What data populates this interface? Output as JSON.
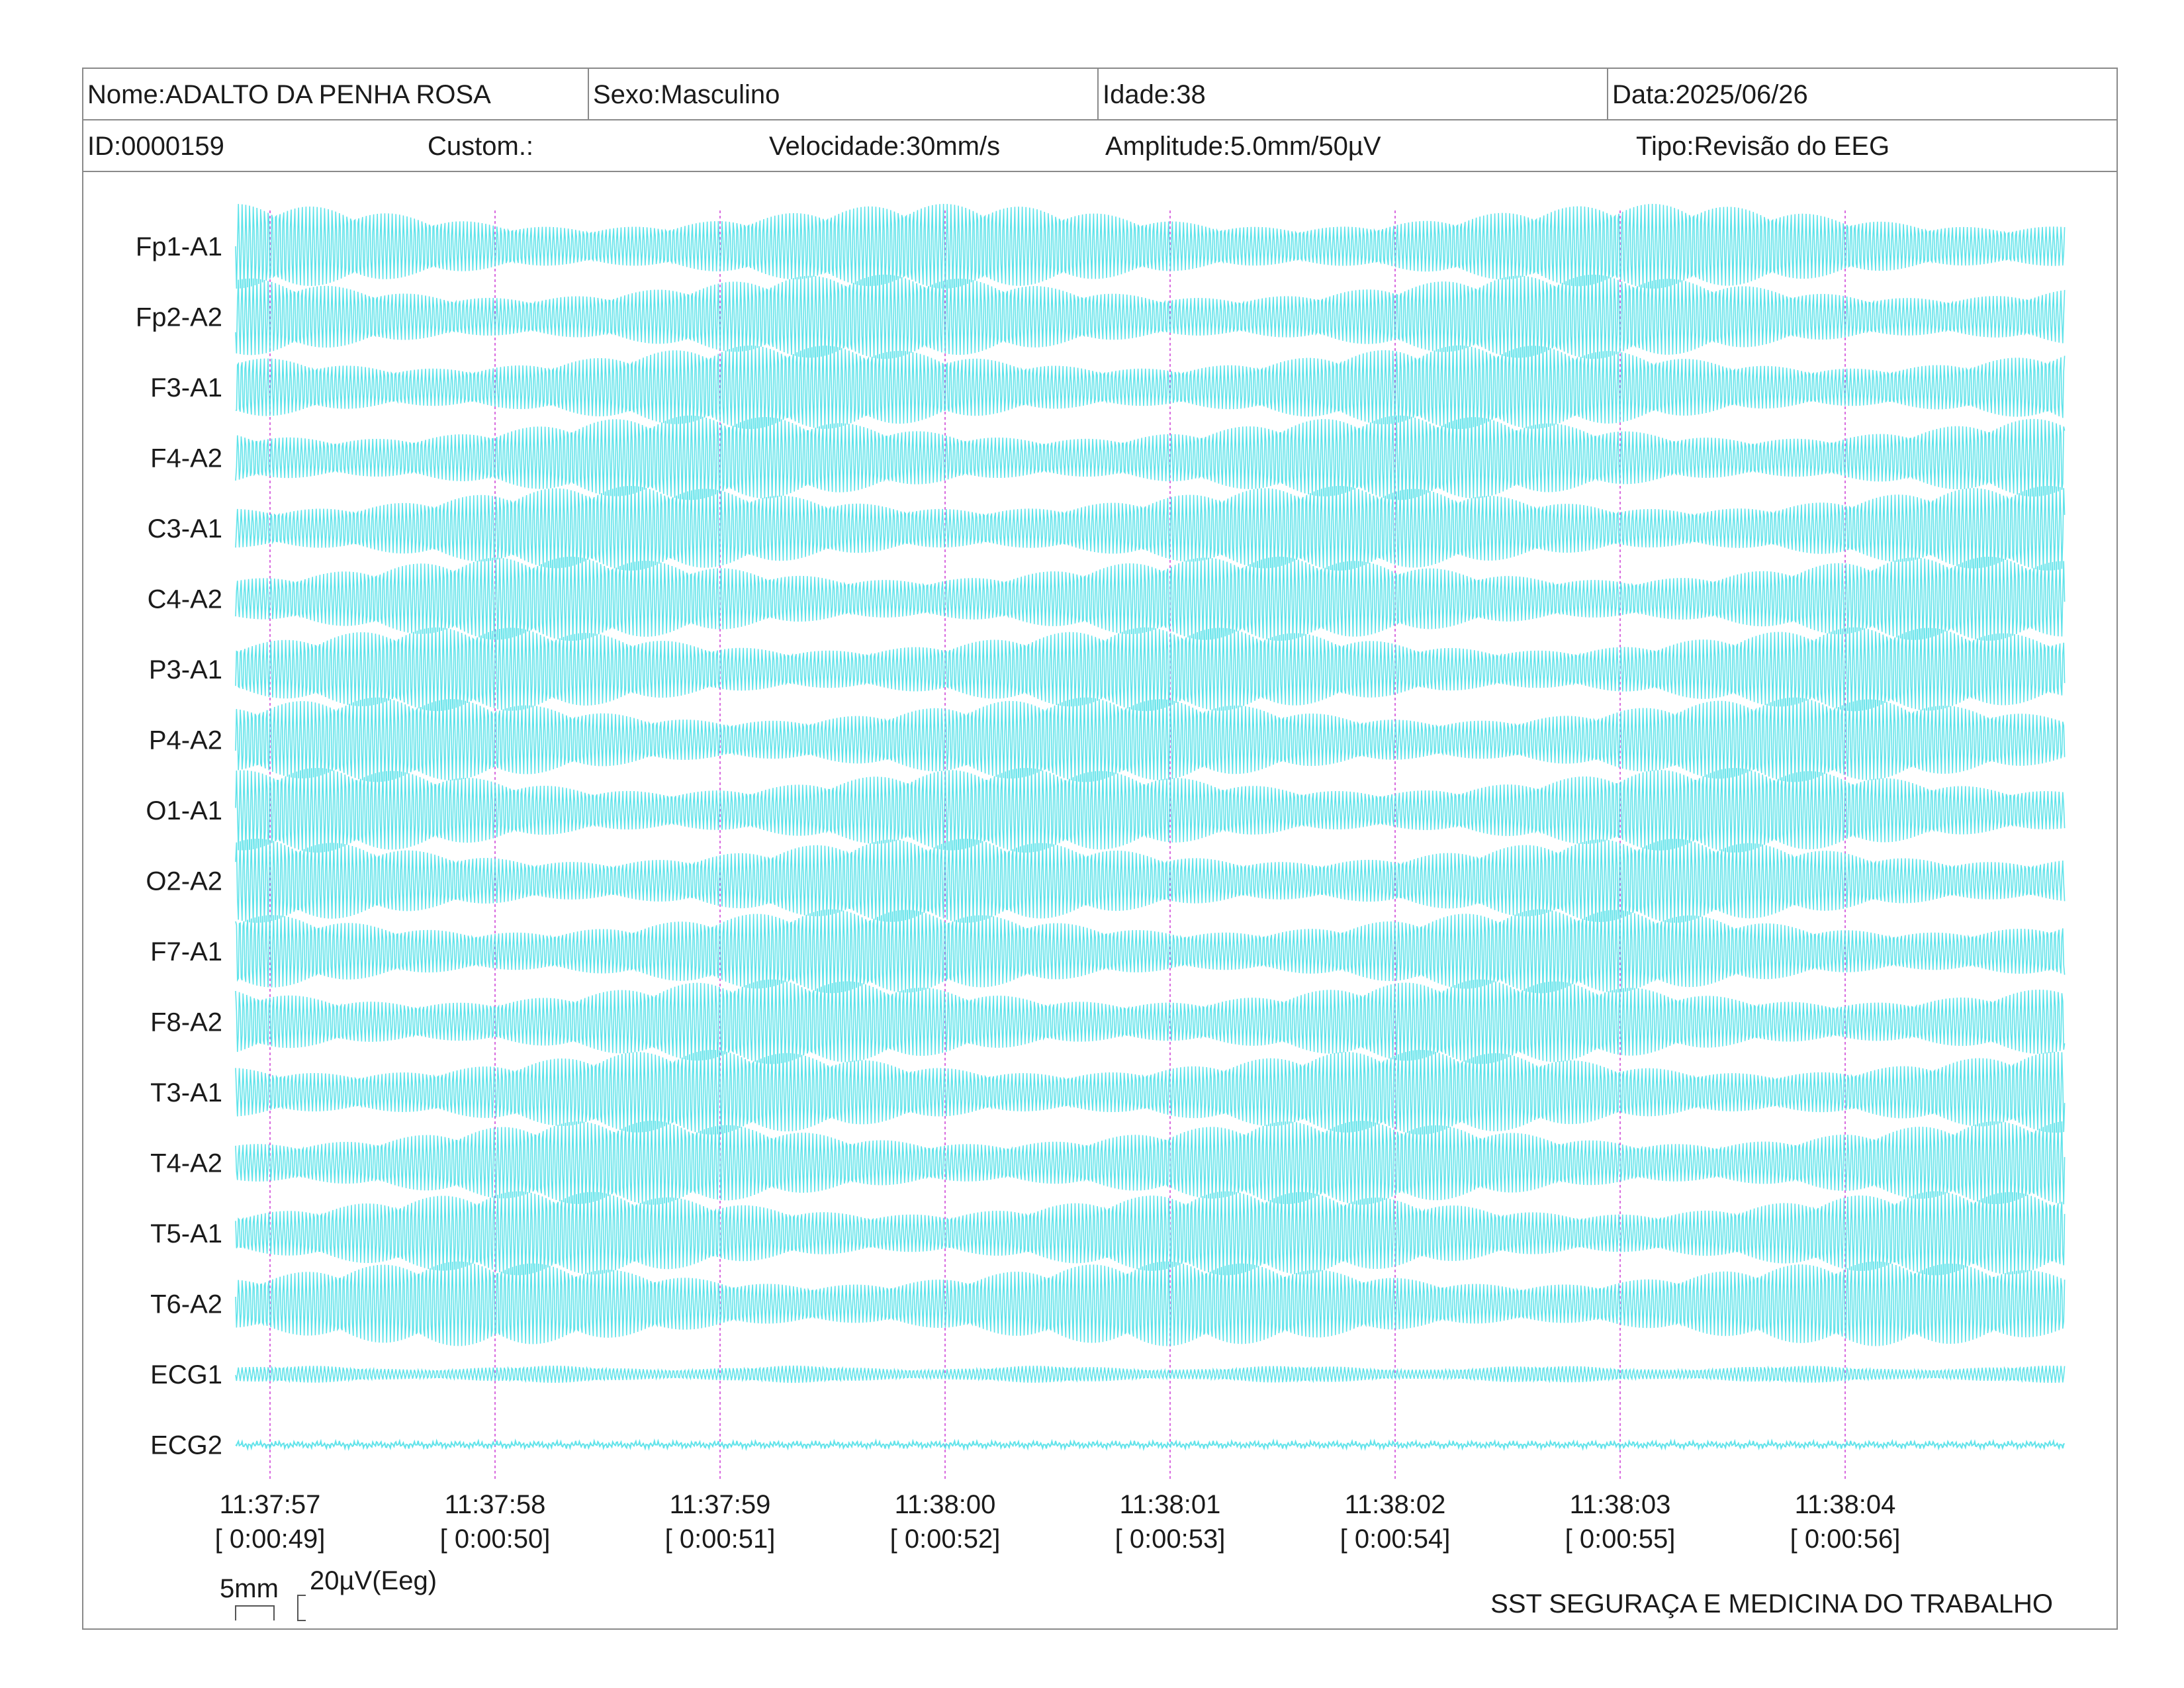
{
  "header": {
    "name": "Nome:ADALTO DA PENHA ROSA",
    "sex": "Sexo:Masculino",
    "age": "Idade:38",
    "date": "Data:2025/06/26",
    "id": "ID:0000159",
    "custom": "Custom.:",
    "speed": "Velocidade:30mm/s",
    "amplitude": "Amplitude:5.0mm/50µV",
    "type": "Tipo:Revisão do EEG"
  },
  "scale": {
    "time_bar": "5mm",
    "amplitude_bar": "20µV(Eeg)"
  },
  "footer": {
    "organization": "SST SEGURAÇA E MEDICINA DO TRABALHO"
  },
  "colors": {
    "trace": "#4fe0e8",
    "marker": "#d96adf",
    "border": "#8a8a8a"
  },
  "chart_data": {
    "type": "line",
    "title": "",
    "channels": [
      "Fp1-A1",
      "Fp2-A2",
      "F3-A1",
      "F4-A2",
      "C3-A1",
      "C4-A2",
      "P3-A1",
      "P4-A2",
      "O1-A1",
      "O2-A2",
      "F7-A1",
      "F8-A2",
      "T3-A1",
      "T4-A2",
      "T5-A1",
      "T6-A2",
      "ECG1",
      "ECG2"
    ],
    "time_markers": [
      {
        "clock": "11:37:57",
        "elapsed": "[ 0:00:49]"
      },
      {
        "clock": "11:37:58",
        "elapsed": "[ 0:00:50]"
      },
      {
        "clock": "11:37:59",
        "elapsed": "[ 0:00:51]"
      },
      {
        "clock": "11:38:00",
        "elapsed": "[ 0:00:52]"
      },
      {
        "clock": "11:38:01",
        "elapsed": "[ 0:00:53]"
      },
      {
        "clock": "11:38:02",
        "elapsed": "[ 0:00:54]"
      },
      {
        "clock": "11:38:03",
        "elapsed": "[ 0:00:55]"
      },
      {
        "clock": "11:38:04",
        "elapsed": "[ 0:00:56]"
      }
    ],
    "trace_frequency_hz": 60,
    "grid": false
  }
}
